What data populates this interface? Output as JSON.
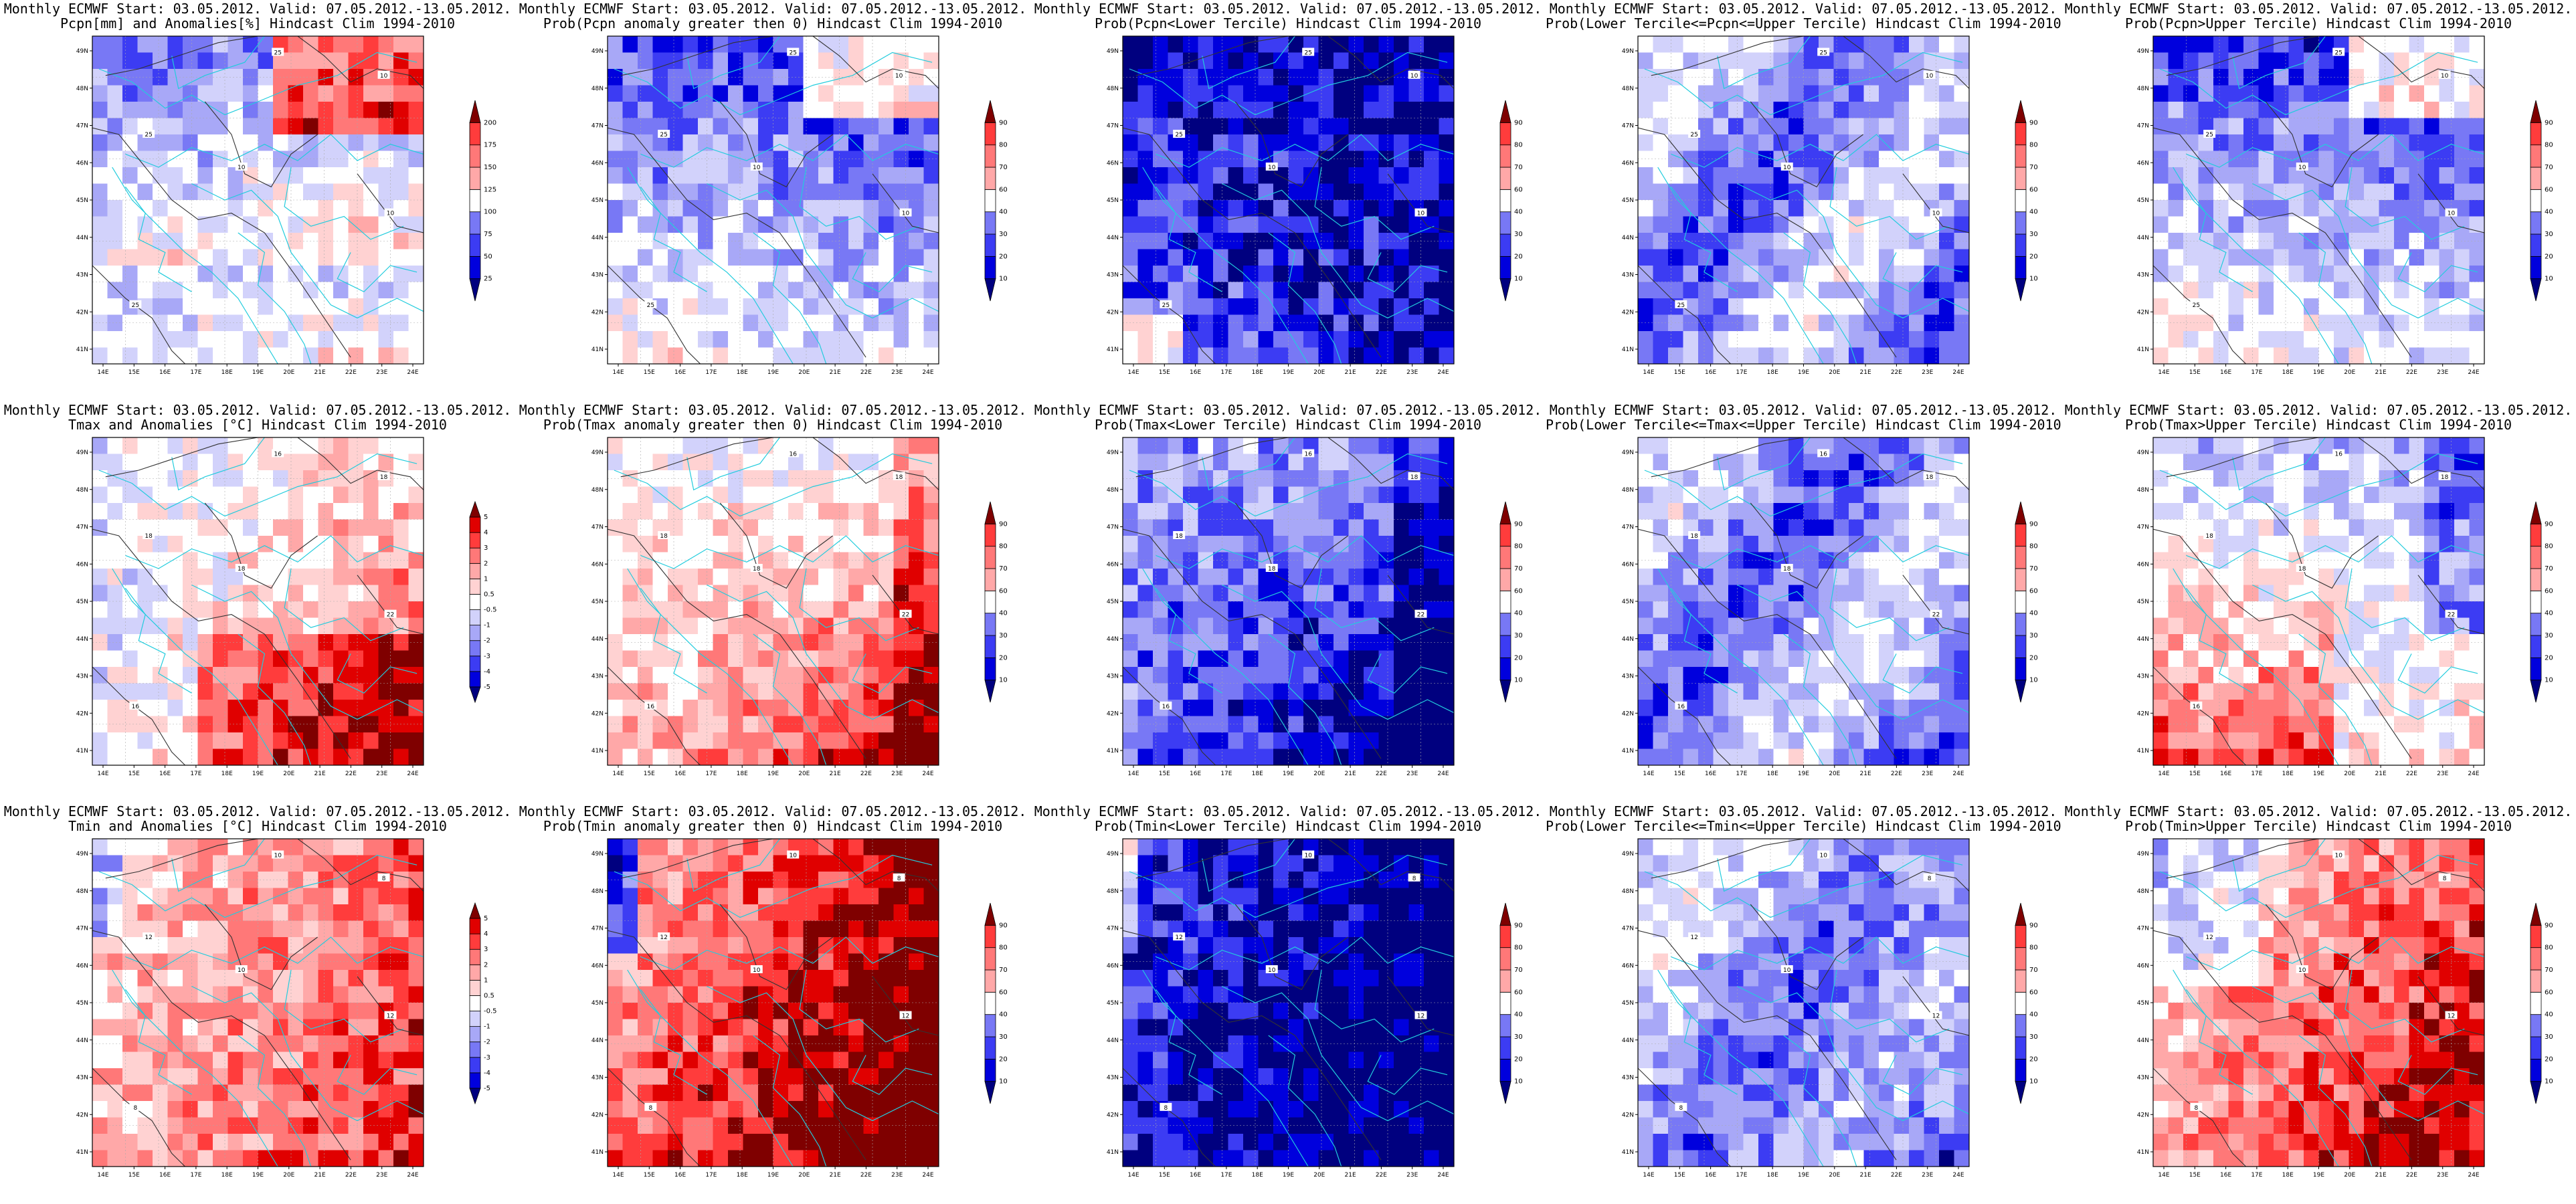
{
  "colors": {
    "blue": [
      "#00007f",
      "#0000dd",
      "#3c3cf3",
      "#7878f5",
      "#a8a8f7",
      "#d2d2fb"
    ],
    "red": [
      "#ffd2d2",
      "#ffa8a8",
      "#ff7878",
      "#ff3c3c",
      "#e00000",
      "#7f0000"
    ],
    "neutral": "#ffffff",
    "border": "#22ccdd",
    "contour": "#333333",
    "gridline": "#aaaaaa"
  },
  "map": {
    "lon_labels": [
      "14E",
      "15E",
      "16E",
      "17E",
      "18E",
      "19E",
      "20E",
      "21E",
      "22E",
      "23E",
      "24E"
    ],
    "lat_labels": [
      "41N",
      "42N",
      "43N",
      "44N",
      "45N",
      "46N",
      "47N",
      "48N",
      "49N"
    ]
  },
  "panels": [
    {
      "title1": "Monthly ECMWF Start: 03.05.2012. Valid: 07.05.2012.-13.05.2012.",
      "title2": "Pcpn[mm] and Anomalies[%] Hindcast Clim 1994-2010",
      "kind": "anom_p",
      "levels": [
        "25",
        "50",
        "75",
        "100",
        "125",
        "150",
        "175",
        "200"
      ],
      "contour_labels": [
        "25",
        "25",
        "25",
        "10",
        "10",
        "10"
      ]
    },
    {
      "title1": "Monthly ECMWF Start: 03.05.2012. Valid: 07.05.2012.-13.05.2012.",
      "title2": "Prob(Pcpn anomaly greater then 0) Hindcast Clim 1994-2010",
      "kind": "p_dry",
      "levels": [
        "10",
        "20",
        "30",
        "40",
        "60",
        "70",
        "80",
        "90"
      ],
      "contour_labels": [
        "25",
        "25",
        "25",
        "10",
        "10",
        "10"
      ]
    },
    {
      "title1": "Monthly ECMWF Start: 03.05.2012. Valid: 07.05.2012.-13.05.2012.",
      "title2": "Prob(Pcpn<Lower Tercile) Hindcast Clim 1994-2010",
      "kind": "p_verydry",
      "levels": [
        "10",
        "20",
        "30",
        "40",
        "60",
        "70",
        "80",
        "90"
      ],
      "contour_labels": [
        "25",
        "25",
        "25",
        "10",
        "10",
        "10"
      ]
    },
    {
      "title1": "Monthly ECMWF Start: 03.05.2012. Valid: 07.05.2012.-13.05.2012.",
      "title2": "Prob(Lower Tercile<=Pcpn<=Upper Tercile) Hindcast Clim 1994-2010",
      "kind": "p_mid",
      "levels": [
        "10",
        "20",
        "30",
        "40",
        "60",
        "70",
        "80",
        "90"
      ],
      "contour_labels": [
        "25",
        "25",
        "25",
        "10",
        "10",
        "10"
      ]
    },
    {
      "title1": "Monthly ECMWF Start: 03.05.2012. Valid: 07.05.2012.-13.05.2012.",
      "title2": "Prob(Pcpn>Upper Tercile) Hindcast Clim 1994-2010",
      "kind": "p_dry",
      "levels": [
        "10",
        "20",
        "30",
        "40",
        "60",
        "70",
        "80",
        "90"
      ],
      "contour_labels": [
        "25",
        "25",
        "25",
        "10",
        "10",
        "10"
      ]
    },
    {
      "title1": "Monthly ECMWF Start: 03.05.2012. Valid: 07.05.2012.-13.05.2012.",
      "title2": "Tmax and Anomalies [°C] Hindcast Clim 1994-2010",
      "kind": "anom_t",
      "levels": [
        "-5",
        "-4",
        "-3",
        "-2",
        "-1",
        "-0.5",
        "0.5",
        "1",
        "2",
        "3",
        "4",
        "5"
      ],
      "contour_labels": [
        "18",
        "16",
        "16",
        "18",
        "22",
        "18"
      ]
    },
    {
      "title1": "Monthly ECMWF Start: 03.05.2012. Valid: 07.05.2012.-13.05.2012.",
      "title2": "Prob(Tmax anomaly greater then 0) Hindcast Clim 1994-2010",
      "kind": "p_warm",
      "levels": [
        "10",
        "20",
        "30",
        "40",
        "60",
        "70",
        "80",
        "90"
      ],
      "contour_labels": [
        "18",
        "16",
        "16",
        "18",
        "22",
        "18"
      ]
    },
    {
      "title1": "Monthly ECMWF Start: 03.05.2012. Valid: 07.05.2012.-13.05.2012.",
      "title2": "Prob(Tmax<Lower Tercile) Hindcast Clim 1994-2010",
      "kind": "p_cold",
      "levels": [
        "10",
        "20",
        "30",
        "40",
        "60",
        "70",
        "80",
        "90"
      ],
      "contour_labels": [
        "18",
        "16",
        "16",
        "18",
        "22",
        "18"
      ]
    },
    {
      "title1": "Monthly ECMWF Start: 03.05.2012. Valid: 07.05.2012.-13.05.2012.",
      "title2": "Prob(Lower Tercile<=Tmax<=Upper Tercile) Hindcast Clim 1994-2010",
      "kind": "p_mid",
      "levels": [
        "10",
        "20",
        "30",
        "40",
        "60",
        "70",
        "80",
        "90"
      ],
      "contour_labels": [
        "18",
        "16",
        "16",
        "18",
        "22",
        "18"
      ]
    },
    {
      "title1": "Monthly ECMWF Start: 03.05.2012. Valid: 07.05.2012.-13.05.2012.",
      "title2": "Prob(Tmax>Upper Tercile) Hindcast Clim 1994-2010",
      "kind": "p_warmish",
      "levels": [
        "10",
        "20",
        "30",
        "40",
        "60",
        "70",
        "80",
        "90"
      ],
      "contour_labels": [
        "18",
        "16",
        "16",
        "18",
        "22",
        "18"
      ]
    },
    {
      "title1": "Monthly ECMWF Start: 03.05.2012. Valid: 07.05.2012.-13.05.2012.",
      "title2": "Tmin and Anomalies [°C] Hindcast Clim 1994-2010",
      "kind": "anom_tmin",
      "levels": [
        "-5",
        "-4",
        "-3",
        "-2",
        "-1",
        "-0.5",
        "0.5",
        "1",
        "2",
        "3",
        "4",
        "5"
      ],
      "contour_labels": [
        "12",
        "10",
        "8",
        "8",
        "12",
        "10"
      ]
    },
    {
      "title1": "Monthly ECMWF Start: 03.05.2012. Valid: 07.05.2012.-13.05.2012.",
      "title2": "Prob(Tmin anomaly greater then 0) Hindcast Clim 1994-2010",
      "kind": "p_hot",
      "levels": [
        "10",
        "20",
        "30",
        "40",
        "60",
        "70",
        "80",
        "90"
      ],
      "contour_labels": [
        "12",
        "10",
        "8",
        "8",
        "12",
        "10"
      ]
    },
    {
      "title1": "Monthly ECMWF Start: 03.05.2012. Valid: 07.05.2012.-13.05.2012.",
      "title2": "Prob(Tmin<Lower Tercile) Hindcast Clim 1994-2010",
      "kind": "p_verycold",
      "levels": [
        "10",
        "20",
        "30",
        "40",
        "60",
        "70",
        "80",
        "90"
      ],
      "contour_labels": [
        "12",
        "10",
        "8",
        "8",
        "12",
        "10"
      ]
    },
    {
      "title1": "Monthly ECMWF Start: 03.05.2012. Valid: 07.05.2012.-13.05.2012.",
      "title2": "Prob(Lower Tercile<=Tmin<=Upper Tercile) Hindcast Clim 1994-2010",
      "kind": "p_mid2",
      "levels": [
        "10",
        "20",
        "30",
        "40",
        "60",
        "70",
        "80",
        "90"
      ],
      "contour_labels": [
        "12",
        "10",
        "8",
        "8",
        "12",
        "10"
      ]
    },
    {
      "title1": "Monthly ECMWF Start: 03.05.2012. Valid: 07.05.2012.-13.05.2012.",
      "title2": "Prob(Tmin>Upper Tercile) Hindcast Clim 1994-2010",
      "kind": "p_warm2",
      "levels": [
        "10",
        "20",
        "30",
        "40",
        "60",
        "70",
        "80",
        "90"
      ],
      "contour_labels": [
        "12",
        "10",
        "8",
        "8",
        "12",
        "10"
      ]
    }
  ]
}
